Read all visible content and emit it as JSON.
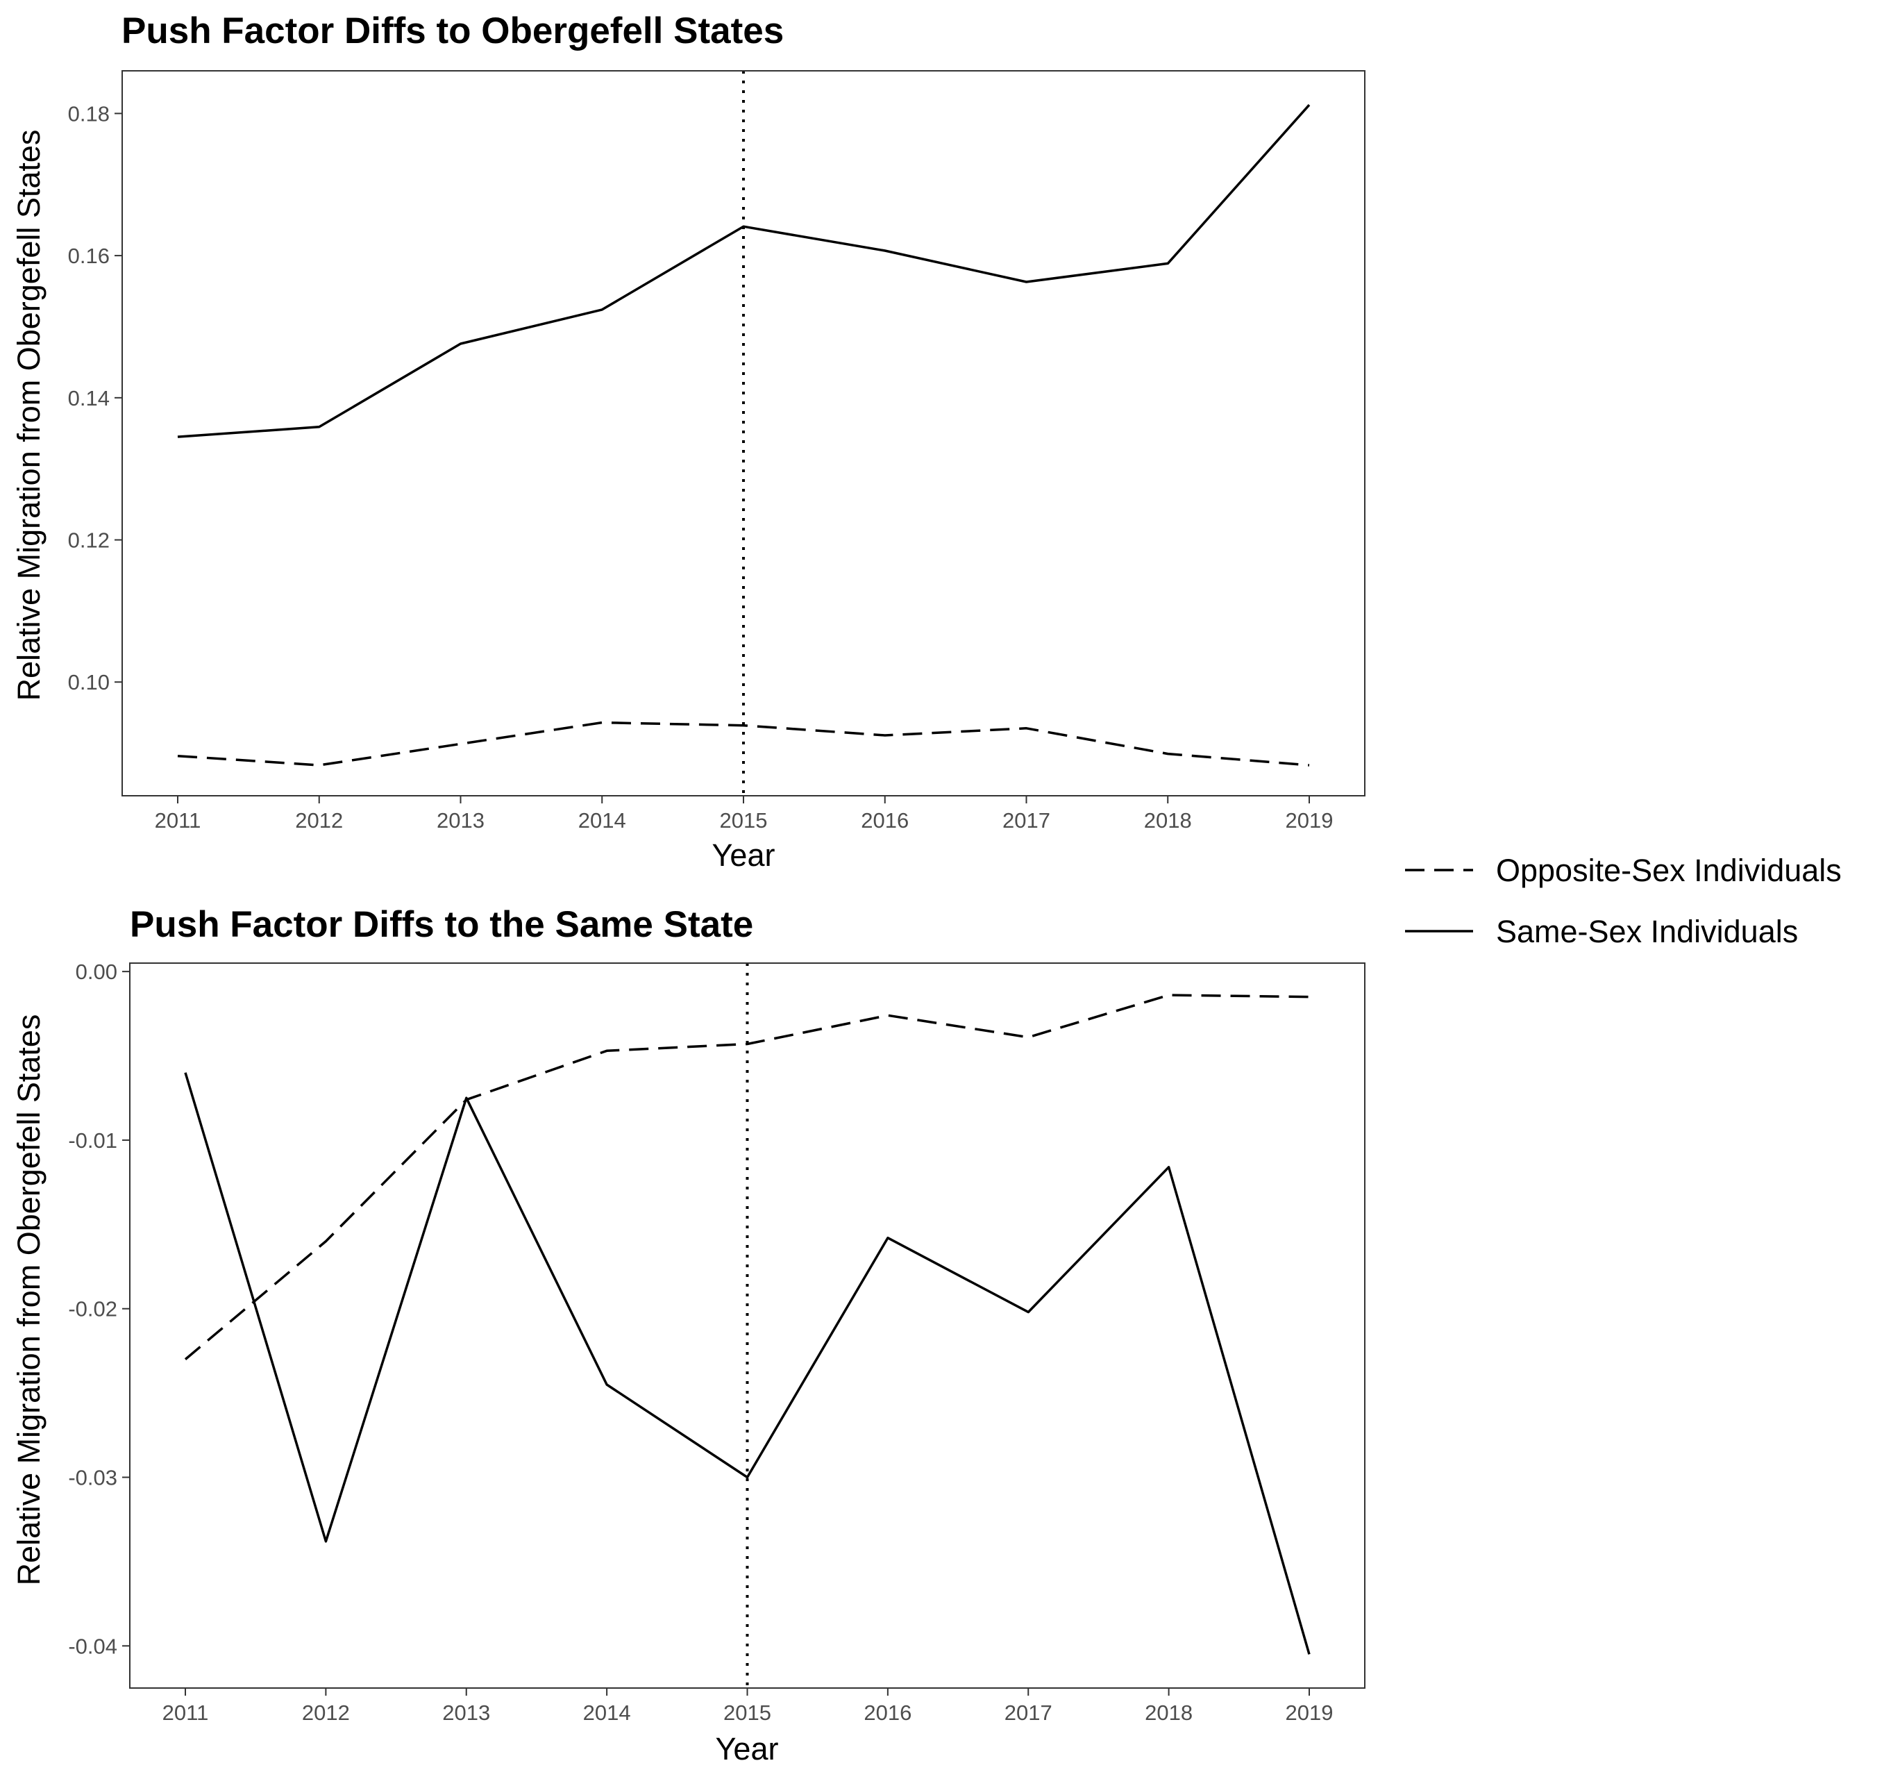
{
  "legend": {
    "entries": [
      {
        "label": "Opposite-Sex Individuals",
        "linetype": "dashed"
      },
      {
        "label": "Same-Sex Individuals",
        "linetype": "solid"
      }
    ]
  },
  "colors": {
    "line": "#000000",
    "axis": "#333333",
    "tick_text": "#4d4d4d"
  },
  "chart_data": [
    {
      "type": "line",
      "title": "Push Factor Diffs to Obergefell States",
      "xlabel": "Year",
      "ylabel": "Relative Migration from Obergefell States",
      "x": [
        2011,
        2012,
        2013,
        2014,
        2015,
        2016,
        2017,
        2018,
        2019
      ],
      "xticks": [
        "2011",
        "2012",
        "2013",
        "2014",
        "2015",
        "2016",
        "2017",
        "2018",
        "2019"
      ],
      "yticks": [
        "0.10",
        "0.12",
        "0.14",
        "0.16",
        "0.18"
      ],
      "ylim": [
        0.084,
        0.186
      ],
      "vline_x": 2015,
      "series": [
        {
          "name": "Opposite-Sex Individuals",
          "linetype": "dashed",
          "values": [
            0.0896,
            0.0883,
            0.0913,
            0.0943,
            0.0939,
            0.0925,
            0.0935,
            0.0899,
            0.0883
          ]
        },
        {
          "name": "Same-Sex Individuals",
          "linetype": "solid",
          "values": [
            0.1345,
            0.1359,
            0.1476,
            0.1524,
            0.1641,
            0.1607,
            0.1563,
            0.1589,
            0.1812
          ]
        }
      ],
      "grid": false
    },
    {
      "type": "line",
      "title": "Push Factor Diffs to the Same State",
      "xlabel": "Year",
      "ylabel": "Relative Migration from Obergefell States",
      "x": [
        2011,
        2012,
        2013,
        2014,
        2015,
        2016,
        2017,
        2018,
        2019
      ],
      "xticks": [
        "2011",
        "2012",
        "2013",
        "2014",
        "2015",
        "2016",
        "2017",
        "2018",
        "2019"
      ],
      "yticks": [
        "-0.04",
        "-0.03",
        "-0.02",
        "-0.01",
        "0.00"
      ],
      "ytick_values": [
        -0.04,
        -0.03,
        -0.02,
        -0.01,
        0.0
      ],
      "ylim": [
        -0.0425,
        0.0005
      ],
      "vline_x": 2015,
      "series": [
        {
          "name": "Opposite-Sex Individuals",
          "linetype": "dashed",
          "values": [
            -0.023,
            -0.016,
            -0.0076,
            -0.0047,
            -0.0043,
            -0.0026,
            -0.0039,
            -0.0014,
            -0.0015
          ]
        },
        {
          "name": "Same-Sex Individuals",
          "linetype": "solid",
          "values": [
            -0.006,
            -0.0338,
            -0.0075,
            -0.0245,
            -0.03,
            -0.0158,
            -0.0202,
            -0.0116,
            -0.0405
          ]
        }
      ],
      "grid": false
    }
  ]
}
